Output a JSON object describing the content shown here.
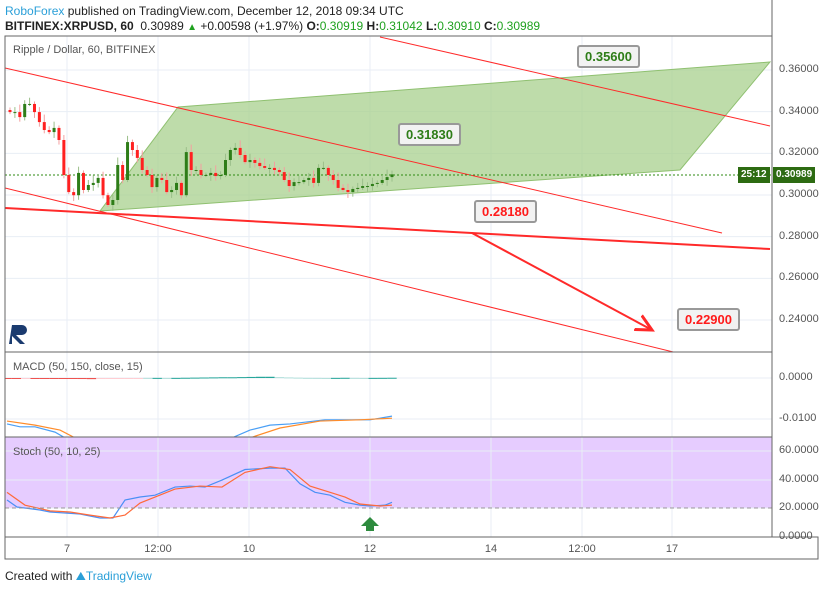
{
  "header": {
    "publisher": "RoboForex",
    "published_text": "published on TradingView.com, December 12, 2018 09:34 UTC",
    "symbol": "BITFINEX:XRPUSD, 60",
    "last": "0.30989",
    "change": "+0.00598 (+1.97%)",
    "o_label": "O:",
    "o": "0.30919",
    "h_label": "H:",
    "h": "0.31042",
    "l_label": "L:",
    "l": "0.30910",
    "c_label": "C:",
    "c": "0.30989"
  },
  "chart": {
    "title": "Ripple / Dollar, 60, BITFINEX",
    "price_ticks": [
      "0.36000",
      "0.34000",
      "0.32000",
      "0.30000",
      "0.28000",
      "0.26000",
      "0.24000"
    ],
    "current_price": "0.30989",
    "countdown": "25:12",
    "callouts": {
      "a": "0.35600",
      "b": "0.31830",
      "c": "0.28180",
      "d": "0.22900"
    },
    "closes": [
      0.3398,
      0.3398,
      0.3374,
      0.3437,
      0.3437,
      0.3398,
      0.335,
      0.3312,
      0.3302,
      0.3322,
      0.3264,
      0.3096,
      0.3014,
      0.2999,
      0.3106,
      0.3024,
      0.3048,
      0.3058,
      0.3082,
      0.2999,
      0.2952,
      0.2976,
      0.3144,
      0.3072,
      0.3254,
      0.3216,
      0.3178,
      0.312,
      0.3096,
      0.3038,
      0.3082,
      0.3072,
      0.3014,
      0.3024,
      0.3058,
      0.2999,
      0.3206,
      0.312,
      0.312,
      0.3096,
      0.3096,
      0.3106,
      0.3091,
      0.3096,
      0.3168,
      0.3216,
      0.3226,
      0.3192,
      0.3158,
      0.3168,
      0.3154,
      0.3139,
      0.313,
      0.313,
      0.312,
      0.311,
      0.3072,
      0.3043,
      0.3062,
      0.3062,
      0.3072,
      0.3082,
      0.3058,
      0.313,
      0.313,
      0.3096,
      0.3072,
      0.3034,
      0.3024,
      0.3014,
      0.3029,
      0.3034,
      0.3043,
      0.3043,
      0.3053,
      0.3058,
      0.3072,
      0.3086,
      0.3099
    ]
  },
  "macd": {
    "title": "MACD (50, 150, close, 15)",
    "ticks": [
      "0.0000",
      "-0.0100"
    ],
    "hist": [
      -5e-05,
      -5e-05,
      -3e-05,
      -3e-05,
      -5e-05,
      -8e-05,
      -0.00012,
      -0.0002,
      -0.00025,
      -0.00028,
      -0.00025,
      -0.00022,
      -0.00018,
      -0.0001,
      -4e-05,
      3e-05,
      3e-05,
      1e-05,
      3e-05,
      6e-05,
      9e-05,
      0.00012,
      0.00015,
      0.00018,
      0.00018,
      0.00022,
      0.00026,
      0.0003,
      0.0003,
      0.00022,
      0.00015,
      9e-05,
      4e-05,
      3e-05,
      1e-05,
      3e-05,
      5e-05,
      3e-05,
      1e-05,
      3e-05,
      4e-05,
      6e-05
    ],
    "macd_line": [
      [
        7,
        -0.0112
      ],
      [
        20,
        -0.0119
      ],
      [
        35,
        -0.0119
      ],
      [
        55,
        -0.0132
      ],
      [
        65,
        -0.0146
      ],
      [
        90,
        -0.03
      ],
      [
        220,
        -0.03
      ],
      [
        232,
        -0.0146
      ],
      [
        250,
        -0.0127
      ],
      [
        270,
        -0.0115
      ],
      [
        290,
        -0.0112
      ],
      [
        325,
        -0.0102
      ],
      [
        345,
        -0.0102
      ],
      [
        370,
        -0.0102
      ],
      [
        392,
        -0.0093
      ]
    ],
    "signal_line": [
      [
        7,
        -0.0105
      ],
      [
        35,
        -0.0115
      ],
      [
        60,
        -0.0127
      ],
      [
        75,
        -0.0146
      ],
      [
        100,
        -0.03
      ],
      [
        235,
        -0.03
      ],
      [
        250,
        -0.0146
      ],
      [
        280,
        -0.0122
      ],
      [
        320,
        -0.0105
      ],
      [
        360,
        -0.0102
      ],
      [
        392,
        -0.0098
      ]
    ]
  },
  "stoch": {
    "title": "Stoch (50, 10, 25)",
    "ticks": [
      "60.0000",
      "40.0000",
      "20.0000",
      "0.0000"
    ],
    "k": [
      [
        7,
        25.6
      ],
      [
        17,
        20.7
      ],
      [
        40,
        18.6
      ],
      [
        50,
        17.2
      ],
      [
        80,
        15.8
      ],
      [
        100,
        13
      ],
      [
        113,
        13
      ],
      [
        125,
        25.6
      ],
      [
        140,
        27.7
      ],
      [
        155,
        29
      ],
      [
        175,
        34.7
      ],
      [
        190,
        35.4
      ],
      [
        205,
        34.7
      ],
      [
        222,
        39.6
      ],
      [
        245,
        47
      ],
      [
        270,
        48
      ],
      [
        285,
        48
      ],
      [
        300,
        37
      ],
      [
        315,
        31
      ],
      [
        330,
        29
      ],
      [
        345,
        24
      ],
      [
        360,
        22
      ],
      [
        370,
        21.4
      ],
      [
        385,
        22
      ],
      [
        392,
        24
      ]
    ],
    "d": [
      [
        7,
        31
      ],
      [
        25,
        22
      ],
      [
        50,
        18
      ],
      [
        70,
        17.2
      ],
      [
        90,
        15
      ],
      [
        110,
        13
      ],
      [
        125,
        15
      ],
      [
        140,
        23.5
      ],
      [
        155,
        27.7
      ],
      [
        175,
        33.3
      ],
      [
        200,
        35.4
      ],
      [
        222,
        34.7
      ],
      [
        245,
        45
      ],
      [
        270,
        49
      ],
      [
        290,
        47
      ],
      [
        310,
        35.4
      ],
      [
        330,
        31
      ],
      [
        345,
        27.7
      ],
      [
        360,
        22.8
      ],
      [
        380,
        21.4
      ],
      [
        392,
        22
      ]
    ]
  },
  "xaxis": {
    "ticks": [
      "7",
      "12:00",
      "10",
      "12",
      "14",
      "12:00",
      "17"
    ]
  },
  "footer": {
    "created_with": "Created with",
    "brand": "TradingView"
  },
  "colors": {
    "up": "#2e7d18",
    "down": "#ff2020",
    "channel": "#a8d08d",
    "trend": "#ff2a2a",
    "stoch_bg": "#e6ccff"
  }
}
